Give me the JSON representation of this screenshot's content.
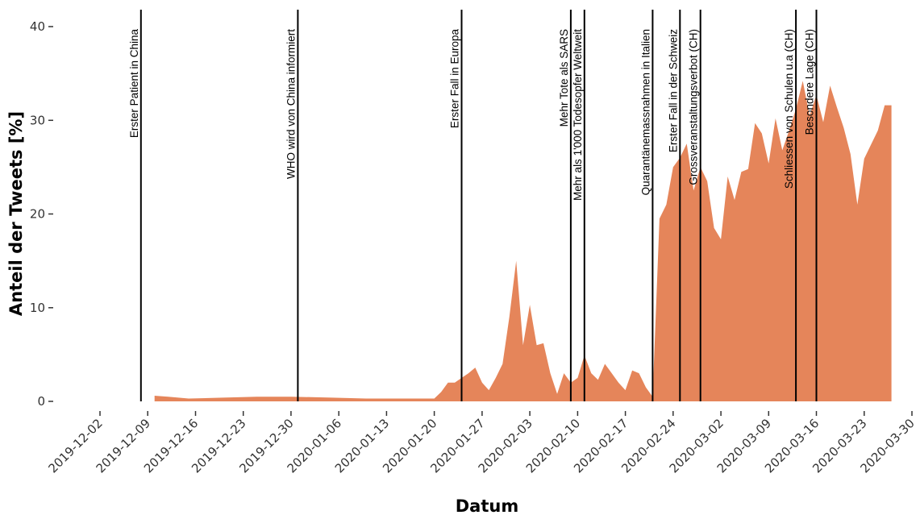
{
  "chart_data": {
    "type": "area",
    "xlabel": "Datum",
    "ylabel": "Anteil der Tweets [%]",
    "ylim": [
      0,
      40
    ],
    "yticks": [
      0,
      10,
      20,
      30,
      40
    ],
    "xlim": [
      "2019-12-02",
      "2020-03-30"
    ],
    "xticks": [
      "2019-12-02",
      "2019-12-09",
      "2019-12-16",
      "2019-12-23",
      "2019-12-30",
      "2020-01-06",
      "2020-01-13",
      "2020-01-20",
      "2020-01-27",
      "2020-02-03",
      "2020-02-10",
      "2020-02-17",
      "2020-02-24",
      "2020-03-02",
      "2020-03-09",
      "2020-03-16",
      "2020-03-23",
      "2020-03-30"
    ],
    "grid": false,
    "colors": {
      "area": "#e5855a",
      "event_line": "#000000"
    },
    "series": [
      {
        "x": [
          "2019-12-10",
          "2019-12-12",
          "2019-12-15",
          "2019-12-20",
          "2019-12-25",
          "2019-12-30",
          "2020-01-05",
          "2020-01-10",
          "2020-01-15",
          "2020-01-20",
          "2020-01-21",
          "2020-01-22",
          "2020-01-23",
          "2020-01-24",
          "2020-01-25",
          "2020-01-26",
          "2020-01-27",
          "2020-01-28",
          "2020-01-29",
          "2020-01-30",
          "2020-01-31",
          "2020-02-01",
          "2020-02-02",
          "2020-02-03",
          "2020-02-04",
          "2020-02-05",
          "2020-02-06",
          "2020-02-07",
          "2020-02-08",
          "2020-02-09",
          "2020-02-10",
          "2020-02-11",
          "2020-02-12",
          "2020-02-13",
          "2020-02-14",
          "2020-02-15",
          "2020-02-16",
          "2020-02-17",
          "2020-02-18",
          "2020-02-19",
          "2020-02-20",
          "2020-02-21",
          "2020-02-22",
          "2020-02-23",
          "2020-02-24",
          "2020-02-25",
          "2020-02-26",
          "2020-02-27",
          "2020-02-28",
          "2020-02-29",
          "2020-03-01",
          "2020-03-02",
          "2020-03-03",
          "2020-03-04",
          "2020-03-05",
          "2020-03-06",
          "2020-03-07",
          "2020-03-08",
          "2020-03-09",
          "2020-03-10",
          "2020-03-11",
          "2020-03-12",
          "2020-03-13",
          "2020-03-14",
          "2020-03-15",
          "2020-03-16",
          "2020-03-17",
          "2020-03-18",
          "2020-03-19",
          "2020-03-20",
          "2020-03-21",
          "2020-03-22",
          "2020-03-23",
          "2020-03-24",
          "2020-03-25",
          "2020-03-26",
          "2020-03-27"
        ],
        "values": [
          0.6,
          0.5,
          0.3,
          0.4,
          0.5,
          0.5,
          0.4,
          0.3,
          0.3,
          0.3,
          1.0,
          2.0,
          2.0,
          2.5,
          3.0,
          3.6,
          2.0,
          1.2,
          2.5,
          4.0,
          9.0,
          15.0,
          6.0,
          10.3,
          6.0,
          6.2,
          3.0,
          0.8,
          3.0,
          2.0,
          2.5,
          4.9,
          3.0,
          2.3,
          4.0,
          3.0,
          2.0,
          1.2,
          3.3,
          3.0,
          1.5,
          0.5,
          19.5,
          21.0,
          25.0,
          26.0,
          27.5,
          22.5,
          25.0,
          23.5,
          18.5,
          17.3,
          24.0,
          21.5,
          24.5,
          24.8,
          29.7,
          28.6,
          25.4,
          30.2,
          26.8,
          28.9,
          31.2,
          34.2,
          30.5,
          32.7,
          29.8,
          33.7,
          31.4,
          29.2,
          26.4,
          21.0,
          25.9,
          27.4,
          28.9,
          31.6,
          31.6
        ]
      }
    ],
    "events": [
      {
        "date": "2019-12-08",
        "label": "Erster Patient in China"
      },
      {
        "date": "2019-12-31",
        "label": "WHO wird von China informiert"
      },
      {
        "date": "2020-01-24",
        "label": "Erster Fall in Europa"
      },
      {
        "date": "2020-02-09",
        "label": "Mehr Tote als SARS"
      },
      {
        "date": "2020-02-11",
        "label": "Mehr als 1'000 Todesopfer Weltweit"
      },
      {
        "date": "2020-02-21",
        "label": "Quarantänemassnahmen in Italien"
      },
      {
        "date": "2020-02-25",
        "label": "Erster Fall in der Schweiz"
      },
      {
        "date": "2020-02-28",
        "label": "Grossveranstaltungsverbot (CH)"
      },
      {
        "date": "2020-03-13",
        "label": "Schliessen von Schulen u.a (CH)"
      },
      {
        "date": "2020-03-16",
        "label": "Besondere Lage (CH)"
      }
    ]
  }
}
